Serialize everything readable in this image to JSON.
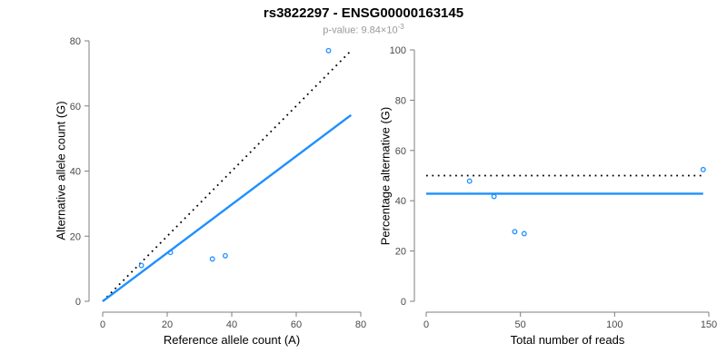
{
  "header": {
    "title": "rs3822297 - ENSG00000163145",
    "subtitle_prefix": "p-value: 9.84×10",
    "subtitle_exponent": "-3",
    "subtitle_color": "#999999"
  },
  "colors": {
    "accent_blue": "#1e90ff",
    "dotted_line": "#000000",
    "axis_line": "#7f7f7f",
    "tick_label": "#4a4a4a"
  },
  "chart_data": [
    {
      "type": "scatter",
      "xlabel": "Reference allele count (A)",
      "ylabel": "Alternative allele count (G)",
      "xlim": [
        0,
        80
      ],
      "ylim": [
        0,
        80
      ],
      "xticks": [
        0,
        20,
        40,
        60,
        80
      ],
      "yticks": [
        0,
        20,
        40,
        60,
        80
      ],
      "grid": false,
      "legend": null,
      "point_color": "#1e90ff",
      "points": [
        {
          "x": 12,
          "y": 11
        },
        {
          "x": 21,
          "y": 15
        },
        {
          "x": 34,
          "y": 13
        },
        {
          "x": 38,
          "y": 14
        },
        {
          "x": 70,
          "y": 77
        }
      ],
      "lines": [
        {
          "name": "identity-line",
          "style": "dotted",
          "color": "#000000",
          "x1": 0,
          "y1": 0,
          "x2": 77,
          "y2": 77
        },
        {
          "name": "regression-line",
          "style": "solid",
          "color": "#1e90ff",
          "x1": 0,
          "y1": 0,
          "x2": 77,
          "y2": 57.2
        }
      ]
    },
    {
      "type": "scatter",
      "xlabel": "Total number of reads",
      "ylabel": "Percentage alternative (G)",
      "xlim": [
        0,
        150
      ],
      "ylim": [
        0,
        100
      ],
      "xticks": [
        0,
        50,
        100,
        150
      ],
      "yticks": [
        0,
        20,
        40,
        60,
        80,
        100
      ],
      "grid": false,
      "legend": null,
      "point_color": "#1e90ff",
      "points": [
        {
          "x": 23,
          "y": 47.8
        },
        {
          "x": 36,
          "y": 41.7
        },
        {
          "x": 47,
          "y": 27.7
        },
        {
          "x": 52,
          "y": 26.9
        },
        {
          "x": 147,
          "y": 52.4
        }
      ],
      "lines": [
        {
          "name": "fifty-percent-line",
          "style": "dotted",
          "color": "#000000",
          "x1": 0,
          "y1": 50,
          "x2": 147,
          "y2": 50
        },
        {
          "name": "mean-percentage-line",
          "style": "solid",
          "color": "#1e90ff",
          "x1": 0,
          "y1": 42.8,
          "x2": 147,
          "y2": 42.8
        }
      ]
    }
  ]
}
